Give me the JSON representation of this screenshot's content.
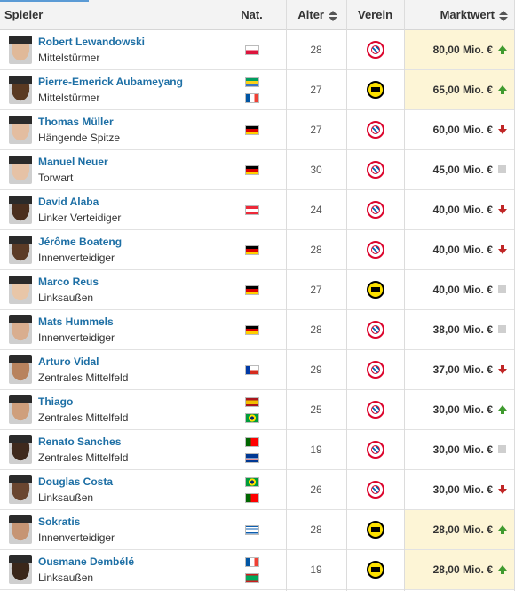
{
  "header": {
    "player": "Spieler",
    "nat": "Nat.",
    "age": "Alter",
    "club": "Verein",
    "market_value": "Marktwert"
  },
  "colors": {
    "name_link": "#1d6fa5",
    "highlight": "#fdf5d6",
    "up": "#3f9a2e",
    "down": "#c02626",
    "same": "#cfcfcf"
  },
  "players": [
    {
      "name": "Robert Lewandowski",
      "position": "Mittelstürmer",
      "nationalities": [
        "poland"
      ],
      "age": "28",
      "club": "fc-bayern-logo",
      "value": "80,00 Mio. €",
      "trend": "up",
      "highlight": true,
      "skin": "#e0b999"
    },
    {
      "name": "Pierre-Emerick Aubameyang",
      "position": "Mittelstürmer",
      "nationalities": [
        "gabon",
        "france"
      ],
      "age": "27",
      "club": "bvb-logo",
      "value": "65,00 Mio. €",
      "trend": "up",
      "highlight": true,
      "skin": "#5a3a22"
    },
    {
      "name": "Thomas Müller",
      "position": "Hängende Spitze",
      "nationalities": [
        "germany"
      ],
      "age": "27",
      "club": "fc-bayern-logo",
      "value": "60,00 Mio. €",
      "trend": "down",
      "highlight": false,
      "skin": "#e3bda0"
    },
    {
      "name": "Manuel Neuer",
      "position": "Torwart",
      "nationalities": [
        "germany"
      ],
      "age": "30",
      "club": "fc-bayern-logo",
      "value": "45,00 Mio. €",
      "trend": "same",
      "highlight": false,
      "skin": "#e6c2a6"
    },
    {
      "name": "David Alaba",
      "position": "Linker Verteidiger",
      "nationalities": [
        "austria"
      ],
      "age": "24",
      "club": "fc-bayern-logo",
      "value": "40,00 Mio. €",
      "trend": "down",
      "highlight": false,
      "skin": "#4b2f1e"
    },
    {
      "name": "Jérôme Boateng",
      "position": "Innenverteidiger",
      "nationalities": [
        "germany"
      ],
      "age": "28",
      "club": "fc-bayern-logo",
      "value": "40,00 Mio. €",
      "trend": "down",
      "highlight": false,
      "skin": "#5b3b26"
    },
    {
      "name": "Marco Reus",
      "position": "Linksaußen",
      "nationalities": [
        "germany"
      ],
      "age": "27",
      "club": "bvb-logo",
      "value": "40,00 Mio. €",
      "trend": "same",
      "highlight": false,
      "skin": "#e8c6a8"
    },
    {
      "name": "Mats Hummels",
      "position": "Innenverteidiger",
      "nationalities": [
        "germany"
      ],
      "age": "28",
      "club": "fc-bayern-logo",
      "value": "38,00 Mio. €",
      "trend": "same",
      "highlight": false,
      "skin": "#d9ae8f"
    },
    {
      "name": "Arturo Vidal",
      "position": "Zentrales Mittelfeld",
      "nationalities": [
        "chile"
      ],
      "age": "29",
      "club": "fc-bayern-logo",
      "value": "37,00 Mio. €",
      "trend": "down",
      "highlight": false,
      "skin": "#b8835e"
    },
    {
      "name": "Thiago",
      "position": "Zentrales Mittelfeld",
      "nationalities": [
        "spain",
        "brazil"
      ],
      "age": "25",
      "club": "fc-bayern-logo",
      "value": "30,00 Mio. €",
      "trend": "up",
      "highlight": false,
      "skin": "#cf9f7c"
    },
    {
      "name": "Renato Sanches",
      "position": "Zentrales Mittelfeld",
      "nationalities": [
        "portugal",
        "cape-verde"
      ],
      "age": "19",
      "club": "fc-bayern-logo",
      "value": "30,00 Mio. €",
      "trend": "same",
      "highlight": false,
      "skin": "#3f2a1d"
    },
    {
      "name": "Douglas Costa",
      "position": "Linksaußen",
      "nationalities": [
        "brazil",
        "portugal"
      ],
      "age": "26",
      "club": "fc-bayern-logo",
      "value": "30,00 Mio. €",
      "trend": "down",
      "highlight": false,
      "skin": "#6a4630"
    },
    {
      "name": "Sokratis",
      "position": "Innenverteidiger",
      "nationalities": [
        "greece"
      ],
      "age": "28",
      "club": "bvb-logo",
      "value": "28,00 Mio. €",
      "trend": "up",
      "highlight": true,
      "skin": "#c69574"
    },
    {
      "name": "Ousmane Dembélé",
      "position": "Linksaußen",
      "nationalities": [
        "france",
        "mauritania"
      ],
      "age": "19",
      "club": "bvb-logo",
      "value": "28,00 Mio. €",
      "trend": "up",
      "highlight": true,
      "skin": "#3a271a"
    }
  ]
}
